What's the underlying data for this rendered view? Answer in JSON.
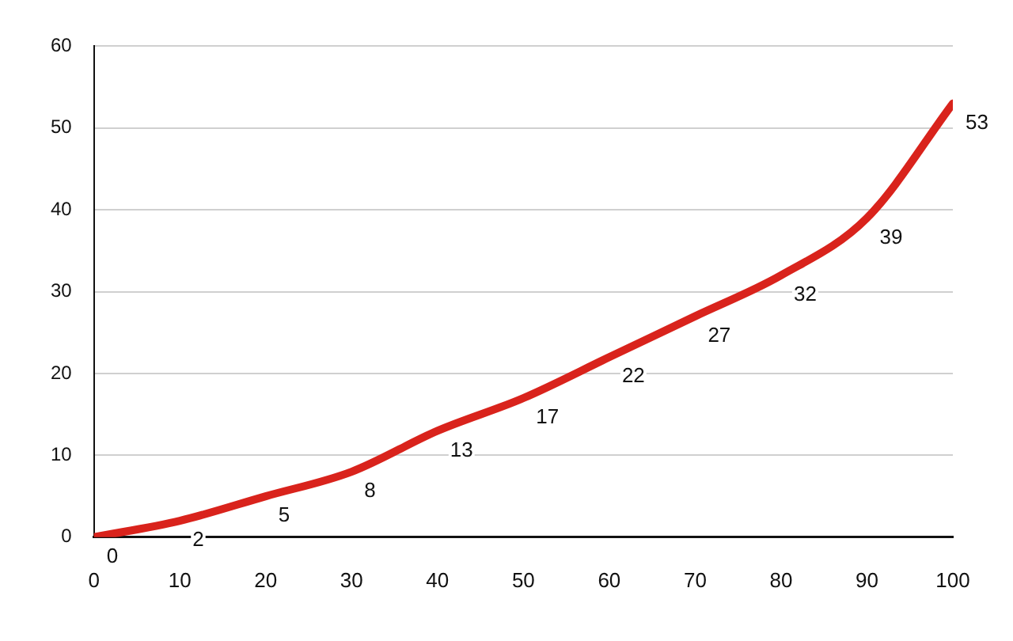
{
  "chart_data": {
    "type": "line",
    "x": [
      0,
      10,
      20,
      30,
      40,
      50,
      60,
      70,
      80,
      90,
      100
    ],
    "series": [
      {
        "color": "#d9231c",
        "values": [
          0,
          2,
          5,
          8,
          13,
          17,
          22,
          27,
          32,
          39,
          53
        ]
      }
    ],
    "xlim": [
      0,
      100
    ],
    "xticks": [
      0,
      10,
      20,
      30,
      40,
      50,
      60,
      70,
      80,
      90,
      100
    ],
    "ylim": [
      0,
      60
    ],
    "yticks": [
      0,
      10,
      20,
      30,
      40,
      50,
      60
    ],
    "grid": "y",
    "legend": false,
    "marker": "none",
    "line_style": "solid",
    "data_labels": true
  }
}
